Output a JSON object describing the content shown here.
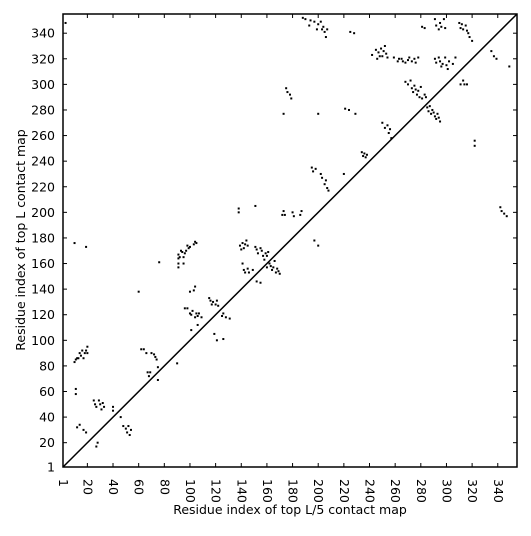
{
  "chart_data": {
    "type": "scatter",
    "title": "",
    "xlabel": "Residue index of top L/5 contact map",
    "ylabel": "Residue index of top L contact map",
    "xlim": [
      1,
      355
    ],
    "ylim": [
      1,
      355
    ],
    "xticks": [
      1,
      20,
      40,
      60,
      80,
      100,
      120,
      140,
      160,
      180,
      200,
      220,
      240,
      260,
      280,
      300,
      320,
      340
    ],
    "yticks": [
      1,
      20,
      40,
      60,
      80,
      100,
      120,
      140,
      160,
      180,
      200,
      220,
      240,
      260,
      280,
      300,
      320,
      340
    ],
    "grid": false,
    "marker_color": "#000000",
    "diagonal": {
      "from": [
        1,
        1
      ],
      "to": [
        355,
        355
      ],
      "color": "#000000"
    },
    "series": [
      {
        "label_side": "upper-left",
        "points": [
          [
            3,
            348
          ],
          [
            10,
            176
          ],
          [
            19,
            173
          ],
          [
            10,
            83
          ],
          [
            11,
            85
          ],
          [
            12,
            86
          ],
          [
            13,
            86
          ],
          [
            14,
            90
          ],
          [
            15,
            88
          ],
          [
            16,
            92
          ],
          [
            17,
            86
          ],
          [
            18,
            90
          ],
          [
            19,
            92
          ],
          [
            20,
            95
          ],
          [
            20,
            90
          ],
          [
            11,
            58
          ],
          [
            11,
            62
          ],
          [
            12,
            32
          ],
          [
            14,
            34
          ],
          [
            17,
            30
          ],
          [
            19,
            28
          ],
          [
            25,
            53
          ],
          [
            26,
            50
          ],
          [
            27,
            48
          ],
          [
            29,
            53
          ],
          [
            30,
            50
          ],
          [
            31,
            46
          ],
          [
            32,
            51
          ],
          [
            33,
            48
          ],
          [
            27,
            17
          ],
          [
            28,
            20
          ],
          [
            40,
            45
          ],
          [
            40,
            48
          ],
          [
            46,
            40
          ],
          [
            48,
            33
          ],
          [
            50,
            31
          ],
          [
            51,
            28
          ],
          [
            52,
            33
          ],
          [
            54,
            30
          ],
          [
            53,
            26
          ],
          [
            60,
            138
          ],
          [
            62,
            93
          ],
          [
            64,
            93
          ],
          [
            66,
            90
          ],
          [
            67,
            75
          ],
          [
            68,
            72
          ],
          [
            69,
            75
          ],
          [
            70,
            90
          ],
          [
            72,
            89
          ],
          [
            73,
            87
          ],
          [
            74,
            85
          ],
          [
            75,
            79
          ],
          [
            75,
            69
          ],
          [
            76,
            161
          ],
          [
            90,
            82
          ],
          [
            91,
            157
          ],
          [
            91,
            160
          ],
          [
            91,
            164
          ],
          [
            91,
            167
          ],
          [
            92,
            165
          ],
          [
            93,
            170
          ],
          [
            94,
            169
          ],
          [
            95,
            160
          ],
          [
            95,
            165
          ],
          [
            96,
            168
          ],
          [
            97,
            170
          ],
          [
            98,
            174
          ],
          [
            99,
            172
          ],
          [
            100,
            173
          ],
          [
            103,
            175
          ],
          [
            104,
            177
          ],
          [
            105,
            176
          ],
          [
            100,
            138
          ],
          [
            103,
            139
          ],
          [
            104,
            142
          ],
          [
            96,
            125
          ],
          [
            98,
            125
          ],
          [
            100,
            121
          ],
          [
            101,
            120
          ],
          [
            102,
            123
          ],
          [
            104,
            118
          ],
          [
            105,
            121
          ],
          [
            106,
            119
          ],
          [
            107,
            121
          ],
          [
            109,
            118
          ],
          [
            101,
            108
          ],
          [
            106,
            112
          ],
          [
            115,
            133
          ],
          [
            116,
            131
          ],
          [
            117,
            128
          ],
          [
            118,
            130
          ],
          [
            120,
            128
          ],
          [
            121,
            131
          ],
          [
            122,
            127
          ],
          [
            119,
            105
          ],
          [
            121,
            100
          ],
          [
            125,
            119
          ],
          [
            126,
            121
          ],
          [
            128,
            118
          ],
          [
            131,
            117
          ],
          [
            126,
            101
          ],
          [
            138,
            200
          ],
          [
            138,
            203
          ],
          [
            139,
            174
          ],
          [
            140,
            171
          ],
          [
            141,
            176
          ],
          [
            142,
            172
          ],
          [
            143,
            175
          ],
          [
            144,
            178
          ],
          [
            145,
            174
          ],
          [
            141,
            160
          ],
          [
            142,
            155
          ],
          [
            143,
            153
          ],
          [
            145,
            156
          ],
          [
            146,
            153
          ],
          [
            149,
            155
          ],
          [
            151,
            205
          ],
          [
            151,
            173
          ],
          [
            152,
            171
          ],
          [
            153,
            168
          ],
          [
            155,
            172
          ],
          [
            156,
            170
          ],
          [
            157,
            166
          ],
          [
            158,
            163
          ],
          [
            159,
            168
          ],
          [
            160,
            166
          ],
          [
            161,
            169
          ],
          [
            152,
            146
          ],
          [
            155,
            145
          ],
          [
            160,
            157
          ],
          [
            162,
            160
          ],
          [
            163,
            158
          ],
          [
            164,
            155
          ],
          [
            165,
            157
          ],
          [
            166,
            162
          ],
          [
            167,
            153
          ],
          [
            168,
            156
          ],
          [
            169,
            154
          ],
          [
            170,
            152
          ],
          [
            172,
            198
          ],
          [
            173,
            201
          ],
          [
            174,
            198
          ],
          [
            173,
            277
          ],
          [
            175,
            297
          ],
          [
            176,
            294
          ],
          [
            178,
            292
          ],
          [
            179,
            289
          ],
          [
            180,
            200
          ],
          [
            181,
            197
          ],
          [
            186,
            198
          ],
          [
            187,
            201
          ],
          [
            188,
            352
          ],
          [
            190,
            351
          ],
          [
            193,
            346
          ],
          [
            194,
            350
          ],
          [
            195,
            235
          ],
          [
            196,
            232
          ],
          [
            197,
            349
          ],
          [
            198,
            234
          ],
          [
            197,
            178
          ],
          [
            200,
            174
          ],
          [
            199,
            343
          ],
          [
            200,
            347
          ],
          [
            202,
            349
          ],
          [
            203,
            343
          ],
          [
            204,
            345
          ],
          [
            205,
            341
          ],
          [
            206,
            337
          ],
          [
            207,
            343
          ],
          [
            200,
            277
          ],
          [
            202,
            230
          ],
          [
            203,
            227
          ],
          [
            205,
            222
          ],
          [
            206,
            225
          ],
          [
            207,
            219
          ],
          [
            208,
            217
          ],
          [
            220,
            230
          ],
          [
            221,
            281
          ],
          [
            224,
            280
          ],
          [
            225,
            341
          ],
          [
            228,
            340
          ],
          [
            229,
            277
          ],
          [
            234,
            247
          ],
          [
            235,
            244
          ],
          [
            236,
            246
          ],
          [
            237,
            243
          ],
          [
            238,
            245
          ],
          [
            242,
            323
          ],
          [
            245,
            327
          ],
          [
            246,
            320
          ],
          [
            247,
            325
          ],
          [
            248,
            322
          ],
          [
            249,
            328
          ],
          [
            250,
            322
          ],
          [
            251,
            326
          ],
          [
            252,
            330
          ],
          [
            253,
            324
          ],
          [
            254,
            321
          ],
          [
            250,
            270
          ],
          [
            252,
            266
          ],
          [
            254,
            268
          ],
          [
            255,
            262
          ],
          [
            256,
            265
          ],
          [
            257,
            258
          ],
          [
            259,
            321
          ],
          [
            262,
            318
          ],
          [
            263,
            320
          ],
          [
            265,
            320
          ],
          [
            266,
            318
          ],
          [
            268,
            317
          ],
          [
            270,
            319
          ],
          [
            271,
            321
          ],
          [
            273,
            318
          ],
          [
            275,
            320
          ],
          [
            276,
            317
          ],
          [
            278,
            321
          ],
          [
            268,
            302
          ],
          [
            270,
            300
          ],
          [
            272,
            303
          ],
          [
            273,
            297
          ],
          [
            274,
            294
          ],
          [
            275,
            299
          ],
          [
            276,
            296
          ],
          [
            277,
            292
          ],
          [
            278,
            295
          ],
          [
            279,
            290
          ],
          [
            280,
            298
          ],
          [
            281,
            289
          ],
          [
            283,
            292
          ],
          [
            284,
            290
          ],
          [
            281,
            345
          ],
          [
            283,
            344
          ],
          [
            285,
            282
          ],
          [
            286,
            279
          ],
          [
            287,
            283
          ],
          [
            288,
            277
          ],
          [
            289,
            280
          ],
          [
            290,
            278
          ],
          [
            291,
            275
          ],
          [
            292,
            273
          ],
          [
            293,
            277
          ],
          [
            294,
            274
          ],
          [
            295,
            271
          ],
          [
            291,
            351
          ],
          [
            292,
            346
          ],
          [
            294,
            343
          ],
          [
            295,
            348
          ],
          [
            296,
            345
          ],
          [
            298,
            351
          ],
          [
            299,
            344
          ],
          [
            291,
            320
          ],
          [
            292,
            317
          ],
          [
            294,
            321
          ],
          [
            295,
            318
          ],
          [
            296,
            314
          ],
          [
            297,
            316
          ],
          [
            299,
            321
          ],
          [
            300,
            315
          ],
          [
            301,
            312
          ],
          [
            302,
            318
          ],
          [
            305,
            316
          ],
          [
            307,
            321
          ],
          [
            310,
            348
          ],
          [
            311,
            344
          ],
          [
            312,
            347
          ],
          [
            313,
            343
          ],
          [
            315,
            346
          ],
          [
            316,
            342
          ],
          [
            317,
            340
          ],
          [
            318,
            337
          ],
          [
            320,
            334
          ],
          [
            311,
            300
          ],
          [
            313,
            303
          ],
          [
            314,
            300
          ],
          [
            316,
            300
          ],
          [
            322,
            252
          ],
          [
            322,
            256
          ],
          [
            335,
            326
          ],
          [
            337,
            322
          ],
          [
            339,
            320
          ],
          [
            342,
            204
          ],
          [
            343,
            201
          ],
          [
            345,
            199
          ],
          [
            347,
            197
          ],
          [
            349,
            314
          ]
        ]
      }
    ]
  }
}
